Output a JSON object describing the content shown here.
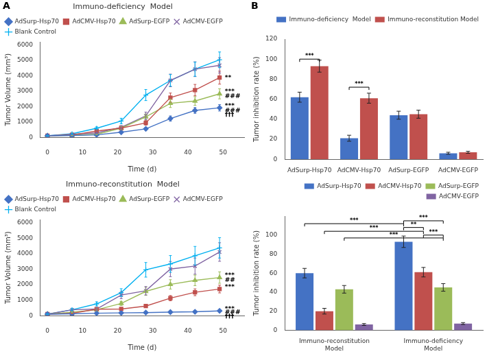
{
  "chart_data": [
    {
      "type": "line",
      "title": "Immuno-deficiency  Model",
      "x_label": "Time (d)",
      "y_label": "Tumor Volume (mm³)",
      "x": [
        0,
        7,
        14,
        21,
        28,
        35,
        42,
        49
      ],
      "series": [
        {
          "name": "AdSurp-Hsp70",
          "color": "#4472C4",
          "marker": "diamond",
          "values": [
            100,
            120,
            160,
            330,
            550,
            1220,
            1750,
            1920
          ],
          "errors": [
            10,
            20,
            25,
            55,
            80,
            170,
            190,
            210
          ]
        },
        {
          "name": "AdCMV-Hsp70",
          "color": "#C0504D",
          "marker": "square",
          "values": [
            100,
            150,
            410,
            600,
            940,
            2580,
            3070,
            3880
          ],
          "errors": [
            10,
            25,
            75,
            100,
            150,
            300,
            370,
            420
          ]
        },
        {
          "name": "AdSurp-EGFP",
          "color": "#9BBB59",
          "marker": "triangle",
          "values": [
            100,
            130,
            200,
            600,
            1330,
            2210,
            2360,
            2830
          ],
          "errors": [
            10,
            20,
            30,
            95,
            190,
            270,
            280,
            330
          ]
        },
        {
          "name": "AdCMV-EGFP",
          "color": "#8064A2",
          "marker": "x",
          "values": [
            100,
            200,
            290,
            650,
            1400,
            3700,
            4430,
            4680
          ],
          "errors": [
            10,
            30,
            45,
            110,
            240,
            410,
            480,
            500
          ]
        },
        {
          "name": "Blank Control",
          "color": "#00B0F0",
          "marker": "plus",
          "values": [
            100,
            230,
            590,
            1060,
            2750,
            3700,
            4430,
            5040
          ],
          "errors": [
            10,
            35,
            90,
            180,
            360,
            380,
            460,
            510
          ]
        }
      ],
      "xlim": [
        -2,
        56
      ],
      "xticks": [
        0,
        10,
        20,
        30,
        40,
        50
      ],
      "ylim": [
        0,
        6200
      ],
      "yticks": [
        0,
        1000,
        2000,
        3000,
        4000,
        5000,
        6000
      ],
      "grid": false,
      "legend": "upper left",
      "annotations": [
        {
          "text": "A"
        },
        {
          "text": "**",
          "x": 50.5,
          "y": 3880
        },
        {
          "text": "***",
          "x": 50.5,
          "y": 2950
        },
        {
          "text": "###",
          "x": 50.5,
          "y": 2640
        },
        {
          "text": "***",
          "x": 50.5,
          "y": 2010
        },
        {
          "text": "###",
          "x": 50.5,
          "y": 1710
        },
        {
          "text": "†††",
          "x": 50.5,
          "y": 1430
        }
      ]
    },
    {
      "type": "line",
      "title": "Immuno-reconstitution  Model",
      "x_label": "Time (d)",
      "y_label": "Tumor Volume (mm³)",
      "x": [
        0,
        7,
        14,
        21,
        28,
        35,
        42,
        49
      ],
      "series": [
        {
          "name": "AdSurp-Hsp70",
          "color": "#4472C4",
          "marker": "diamond",
          "values": [
            100,
            120,
            160,
            180,
            200,
            230,
            250,
            310
          ],
          "errors": [
            10,
            15,
            20,
            25,
            30,
            35,
            40,
            45
          ]
        },
        {
          "name": "AdCMV-Hsp70",
          "color": "#C0504D",
          "marker": "square",
          "values": [
            100,
            150,
            420,
            430,
            620,
            1130,
            1510,
            1720
          ],
          "errors": [
            10,
            25,
            75,
            80,
            100,
            170,
            220,
            250
          ]
        },
        {
          "name": "AdSurp-EGFP",
          "color": "#9BBB59",
          "marker": "triangle",
          "values": [
            100,
            220,
            380,
            790,
            1570,
            2020,
            2280,
            2460
          ],
          "errors": [
            10,
            35,
            65,
            130,
            260,
            300,
            340,
            370
          ]
        },
        {
          "name": "AdCMV-EGFP",
          "color": "#8064A2",
          "marker": "x",
          "values": [
            100,
            380,
            430,
            1330,
            1610,
            3010,
            3200,
            4110
          ],
          "errors": [
            10,
            65,
            75,
            230,
            270,
            490,
            520,
            600
          ]
        },
        {
          "name": "Blank Control",
          "color": "#00B0F0",
          "marker": "plus",
          "values": [
            100,
            380,
            760,
            1490,
            2960,
            3340,
            3870,
            4380
          ],
          "errors": [
            10,
            65,
            130,
            250,
            470,
            540,
            600,
            660
          ]
        }
      ],
      "xlim": [
        -2,
        56
      ],
      "xticks": [
        0,
        10,
        20,
        30,
        40,
        50
      ],
      "ylim": [
        0,
        6200
      ],
      "yticks": [
        0,
        1000,
        2000,
        3000,
        4000,
        5000,
        6000
      ],
      "grid": false,
      "legend": "upper left",
      "annotations": [
        {
          "text": "***",
          "x": 50.5,
          "y": 2580
        },
        {
          "text": "##",
          "x": 50.5,
          "y": 2280
        },
        {
          "text": "***",
          "x": 50.5,
          "y": 1820
        },
        {
          "text": "***",
          "x": 50.5,
          "y": 420
        },
        {
          "text": "###",
          "x": 50.5,
          "y": 180
        },
        {
          "text": "†††",
          "x": 50.5,
          "y": -60
        }
      ]
    },
    {
      "type": "bar",
      "y_label": "Tumor inhibition rate (%)",
      "categories": [
        "AdSurp-Hsp70",
        "AdCMV-Hsp70",
        "AdSurp-EGFP",
        "AdCMV-EGFP"
      ],
      "series": [
        {
          "name": "Immuno-deficiency  Model",
          "color": "#4472C4",
          "values": [
            62,
            21,
            44,
            6
          ],
          "errors": [
            5,
            3,
            4,
            1
          ]
        },
        {
          "name": "Immuno-reconstitution Model",
          "color": "#C0504D",
          "values": [
            93,
            61,
            45,
            7
          ],
          "errors": [
            6,
            5,
            4,
            1
          ]
        }
      ],
      "ylim": [
        0,
        120
      ],
      "yticks": [
        0,
        20,
        40,
        60,
        80,
        100,
        120
      ],
      "grid": false,
      "legend": "upper right",
      "annotations": [
        {
          "text": "B"
        },
        {
          "text": "***",
          "y": 100,
          "from": [
            "Immuno-deficiency  Model",
            "AdSurp-Hsp70"
          ],
          "to": [
            "Immuno-reconstitution Model",
            "AdSurp-Hsp70"
          ]
        },
        {
          "text": "***",
          "y": 72,
          "from": [
            "Immuno-deficiency  Model",
            "AdCMV-Hsp70"
          ],
          "to": [
            "Immuno-reconstitution Model",
            "AdCMV-Hsp70"
          ]
        }
      ]
    },
    {
      "type": "bar",
      "y_label": "Tumor inhibition rate (%)",
      "categories": [
        "Immuno-reconstitution\nModel",
        "Immuno-deficiency\nModel"
      ],
      "series": [
        {
          "name": "AdSurp-Hsp70",
          "color": "#4472C4",
          "values": [
            60,
            93
          ],
          "errors": [
            5,
            6
          ]
        },
        {
          "name": "AdCMV-Hsp70",
          "color": "#C0504D",
          "values": [
            20,
            61
          ],
          "errors": [
            3,
            5
          ]
        },
        {
          "name": "AdSurp-EGFP",
          "color": "#9BBB59",
          "values": [
            43,
            45
          ],
          "errors": [
            4,
            4
          ]
        },
        {
          "name": "AdCMV-EGFP",
          "color": "#8064A2",
          "values": [
            6,
            7
          ],
          "errors": [
            1,
            1
          ]
        }
      ],
      "ylim": [
        0,
        120
      ],
      "yticks": [
        0,
        20,
        40,
        60,
        80,
        100
      ],
      "grid": false,
      "legend": "upper right",
      "annotations": [
        {
          "text": "***",
          "y": 112,
          "from": [
            "AdSurp-Hsp70",
            "Immuno-reconstitution\nModel"
          ],
          "to": [
            "AdSurp-Hsp70",
            "Immuno-deficiency\nModel"
          ]
        },
        {
          "text": "***",
          "y": 104,
          "from": [
            "AdCMV-Hsp70",
            "Immuno-reconstitution\nModel"
          ],
          "to": [
            "AdCMV-Hsp70",
            "Immuno-deficiency\nModel"
          ]
        },
        {
          "text": "***",
          "y": 97,
          "from": [
            "AdSurp-EGFP",
            "Immuno-reconstitution\nModel"
          ],
          "to": [
            "AdSurp-EGFP",
            "Immuno-deficiency\nModel"
          ]
        },
        {
          "text": "**",
          "y": 108,
          "from": [
            "AdSurp-Hsp70",
            "Immuno-deficiency\nModel"
          ],
          "to": [
            "AdCMV-Hsp70",
            "Immuno-deficiency\nModel"
          ]
        },
        {
          "text": "***",
          "y": 115,
          "from": [
            "AdSurp-Hsp70",
            "Immuno-deficiency\nModel"
          ],
          "to": [
            "AdSurp-EGFP",
            "Immuno-deficiency\nModel"
          ]
        },
        {
          "text": "***",
          "y": 100,
          "from": [
            "AdCMV-Hsp70",
            "Immuno-deficiency\nModel"
          ],
          "to": [
            "AdSurp-EGFP",
            "Immuno-deficiency\nModel"
          ]
        }
      ]
    }
  ]
}
